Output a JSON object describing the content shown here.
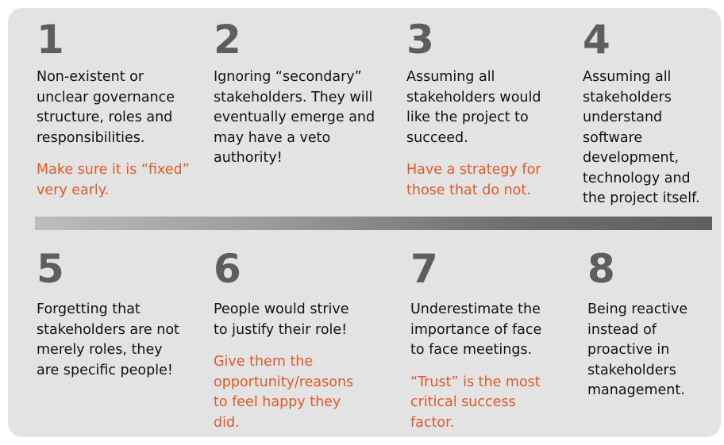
{
  "top_row": [
    {
      "number": "1",
      "text": "Non-existent or unclear governance structure, roles and responsibilities.",
      "tip": "Make sure it is “fixed” very early."
    },
    {
      "number": "2",
      "text": "Ignoring “secondary” stakeholders. They will eventually emerge and may have a veto authority!",
      "tip": ""
    },
    {
      "number": "3",
      "text": "Assuming all stakeholders would like the project to succeed.",
      "tip": "Have a strategy for those that do not."
    },
    {
      "number": "4",
      "text": "Assuming all stakeholders understand software development, technology and the project itself.",
      "tip": ""
    }
  ],
  "bottom_row": [
    {
      "number": "5",
      "text": "Forgetting that stakeholders are not merely roles, they are specific people!",
      "tip": ""
    },
    {
      "number": "6",
      "text": "People would strive to justify their role!",
      "tip": "Give them the opportunity/reasons to feel happy they did."
    },
    {
      "number": "7",
      "text": "Underestimate the importance of face to face meetings.",
      "tip": "“Trust” is the most critical success factor."
    },
    {
      "number": "8",
      "text": "Being reactive instead of proactive in stakeholders management.",
      "tip": ""
    }
  ],
  "colors": {
    "panel": "#e3e3e3",
    "number": "#5e5e5e",
    "text": "#111111",
    "tip": "#e05a28"
  }
}
